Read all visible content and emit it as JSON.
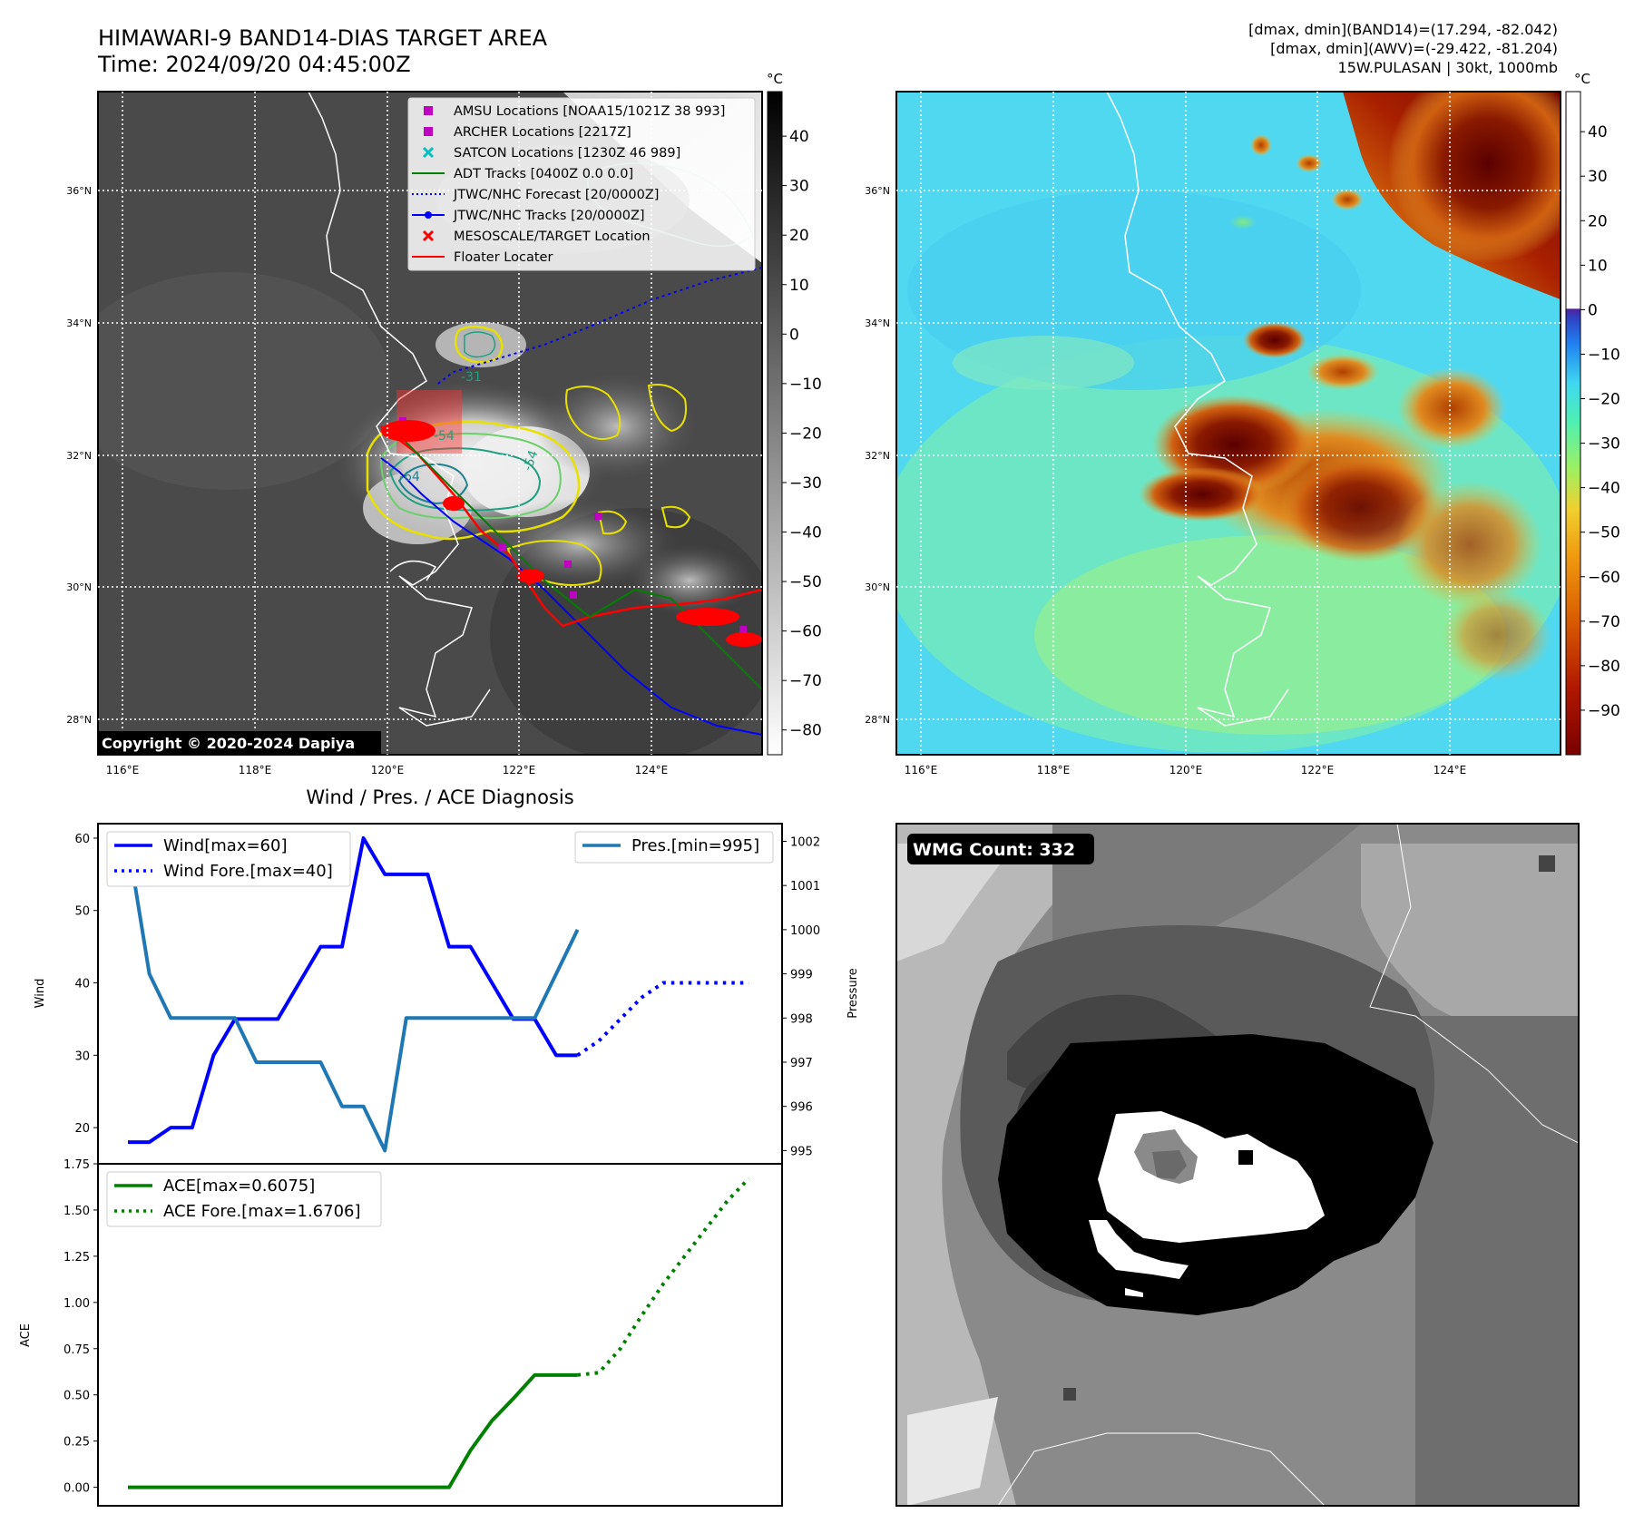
{
  "header": {
    "title_line1": "HIMAWARI-9 BAND14-DIAS TARGET AREA",
    "title_line2": "Time: 2024/09/20 04:45:00Z",
    "info_line1": "[dmax, dmin](BAND14)=(17.294, -82.042)",
    "info_line2": "[dmax, dmin](AWV)=(-29.422, -81.204)",
    "info_line3": "15W.PULASAN | 30kt, 1000mb"
  },
  "maps": {
    "lat_ticks": [
      "36°N",
      "34°N",
      "32°N",
      "30°N",
      "28°N"
    ],
    "lon_ticks": [
      "116°E",
      "118°E",
      "120°E",
      "122°E",
      "124°E"
    ],
    "copyright": "Copyright © 2020-2024 Dapiya",
    "contour_labels": [
      "-54",
      "-64",
      "-54",
      "-31"
    ]
  },
  "legend_map": {
    "items": [
      {
        "label": "AMSU Locations [NOAA15/1021Z 38 993]",
        "color": "#c000c0",
        "kind": "square"
      },
      {
        "label": "ARCHER Locations [2217Z]",
        "color": "#c000c0",
        "kind": "square"
      },
      {
        "label": "SATCON Locations [1230Z 46 989]",
        "color": "#00c0c0",
        "kind": "x"
      },
      {
        "label": "ADT Tracks [0400Z 0.0 0.0]",
        "color": "#008000",
        "kind": "line"
      },
      {
        "label": "JTWC/NHC Forecast [20/0000Z]",
        "color": "#0000ff",
        "kind": "dotted"
      },
      {
        "label": "JTWC/NHC Tracks [20/0000Z]",
        "color": "#0000ff",
        "kind": "linedot"
      },
      {
        "label": "MESOSCALE/TARGET Location",
        "color": "#ff0000",
        "kind": "x"
      },
      {
        "label": "Floater Locater",
        "color": "#ff0000",
        "kind": "line"
      }
    ]
  },
  "colorbar_gray": {
    "unit": "°C",
    "ticks": [
      "40",
      "30",
      "20",
      "10",
      "0",
      "−10",
      "−20",
      "−30",
      "−40",
      "−50",
      "−60",
      "−70",
      "−80"
    ],
    "min": -85,
    "max": 49
  },
  "colorbar_color": {
    "unit": "°C",
    "ticks": [
      "40",
      "30",
      "20",
      "10",
      "0",
      "−10",
      "−20",
      "−30",
      "−40",
      "−50",
      "−60",
      "−70",
      "−80",
      "−90"
    ],
    "min": -100,
    "max": 49,
    "colors": [
      "#7a0000",
      "#b01800",
      "#d85a00",
      "#f09a10",
      "#f0d030",
      "#a0f060",
      "#50f0b0",
      "#40d8f0",
      "#2080f0",
      "#3040c0",
      "#5020a0",
      "#ffffff",
      "#ffffff"
    ]
  },
  "wmg": {
    "label": "WMG Count: 332"
  },
  "chart_data": [
    {
      "type": "line",
      "title": "Wind / Pres. / ACE Diagnosis",
      "ylabel": "Wind",
      "y2label": "Pressure",
      "ylim": [
        15,
        62
      ],
      "y2lim": [
        994.7,
        1002.4
      ],
      "yticks": [
        20,
        30,
        40,
        50,
        60
      ],
      "y2ticks": [
        995,
        996,
        997,
        998,
        999,
        1000,
        1001,
        1002
      ],
      "series": [
        {
          "name": "Wind[max=60]",
          "color": "#0000ff",
          "style": "solid",
          "x": [
            0,
            1,
            2,
            3,
            4,
            5,
            6,
            7,
            8,
            9,
            10,
            11,
            12,
            13,
            14,
            15,
            16,
            17,
            18,
            19,
            20,
            21
          ],
          "values": [
            18,
            18,
            20,
            20,
            30,
            35,
            35,
            35,
            40,
            45,
            45,
            60,
            55,
            55,
            55,
            45,
            45,
            40,
            35,
            35,
            30,
            30
          ]
        },
        {
          "name": "Wind Fore.[max=40]",
          "color": "#0000ff",
          "style": "dotted",
          "x": [
            21,
            22,
            23,
            24,
            25,
            26,
            27,
            28,
            29
          ],
          "values": [
            30,
            32,
            35,
            38,
            40,
            40,
            40,
            40,
            40
          ]
        },
        {
          "name": "Pres.[min=995]",
          "color": "#1f77b4",
          "style": "solid",
          "axis": "right",
          "x": [
            0,
            1,
            2,
            3,
            4,
            5,
            6,
            7,
            8,
            9,
            10,
            11,
            12,
            13,
            14,
            15,
            16,
            17,
            18,
            19,
            20,
            21
          ],
          "values": [
            1002,
            999,
            998,
            998,
            998,
            998,
            997,
            997,
            997,
            997,
            996,
            996,
            995,
            998,
            998,
            998,
            998,
            998,
            998,
            998,
            999,
            1000
          ]
        }
      ],
      "legend_left": [
        "Wind[max=60]",
        "Wind Fore.[max=40]"
      ],
      "legend_right": [
        "Pres.[min=995]"
      ]
    },
    {
      "type": "line",
      "ylabel": "ACE",
      "ylim": [
        -0.1,
        1.75
      ],
      "yticks": [
        0.0,
        0.25,
        0.5,
        0.75,
        1.0,
        1.25,
        1.5,
        1.75
      ],
      "ytick_labels": [
        "0.00",
        "0.25",
        "0.50",
        "0.75",
        "1.00",
        "1.25",
        "1.50",
        "1.75"
      ],
      "series": [
        {
          "name": "ACE[max=0.6075]",
          "color": "#008000",
          "style": "solid",
          "x": [
            0,
            1,
            2,
            3,
            4,
            5,
            6,
            7,
            8,
            9,
            10,
            11,
            12,
            13,
            14,
            15,
            16,
            17,
            18,
            19,
            20,
            21
          ],
          "values": [
            0,
            0,
            0,
            0,
            0,
            0,
            0,
            0,
            0,
            0,
            0,
            0,
            0,
            0,
            0,
            0,
            0.2,
            0.36,
            0.48,
            0.6075,
            0.6075,
            0.6075
          ]
        },
        {
          "name": "ACE Fore.[max=1.6706]",
          "color": "#008000",
          "style": "dotted",
          "x": [
            21,
            22,
            23,
            24,
            25,
            26,
            27,
            28,
            29
          ],
          "values": [
            0.6075,
            0.62,
            0.75,
            0.93,
            1.1,
            1.25,
            1.4,
            1.55,
            1.6706
          ]
        }
      ]
    }
  ]
}
